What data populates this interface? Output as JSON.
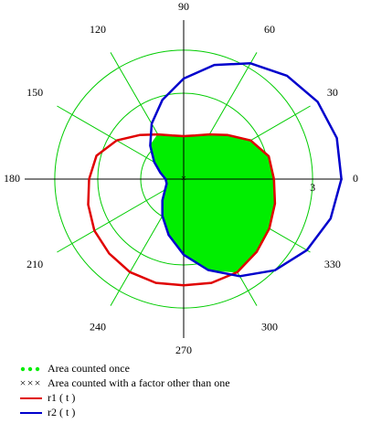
{
  "chart_data": {
    "type": "polar",
    "t": [
      0,
      15,
      30,
      45,
      60,
      75,
      90,
      105,
      120,
      135,
      150,
      165,
      180,
      195,
      210,
      225,
      240,
      255,
      270,
      285,
      300,
      315,
      330,
      345
    ],
    "series": [
      {
        "name": "r1 ( t )",
        "color": "#e00000",
        "values": [
          2.1,
          2.05,
          1.8,
          1.45,
          1.2,
          1.05,
          1.0,
          1.05,
          1.2,
          1.45,
          1.8,
          2.1,
          2.2,
          2.3,
          2.4,
          2.45,
          2.5,
          2.5,
          2.47,
          2.5,
          2.5,
          2.4,
          2.3,
          2.2
        ]
      },
      {
        "name": "r2 ( t )",
        "color": "#0000cc",
        "values": [
          3.67,
          3.69,
          3.6,
          3.4,
          3.11,
          2.75,
          2.34,
          1.91,
          1.49,
          1.1,
          0.79,
          0.56,
          0.42,
          0.41,
          0.5,
          0.7,
          0.99,
          1.35,
          1.76,
          2.19,
          2.61,
          3.0,
          3.31,
          3.54
        ]
      }
    ],
    "area_once": {
      "name": "Area counted once",
      "color": "#00ee00"
    },
    "area_factor": {
      "name": "Area counted with a factor other than one",
      "color": "#000000"
    },
    "rlim": [
      0,
      3.7
    ],
    "rticks": [
      1,
      2,
      3
    ],
    "angle_ticks": [
      0,
      30,
      60,
      90,
      120,
      150,
      180,
      210,
      240,
      270,
      300,
      330
    ],
    "grid_color": "#00cc00"
  }
}
